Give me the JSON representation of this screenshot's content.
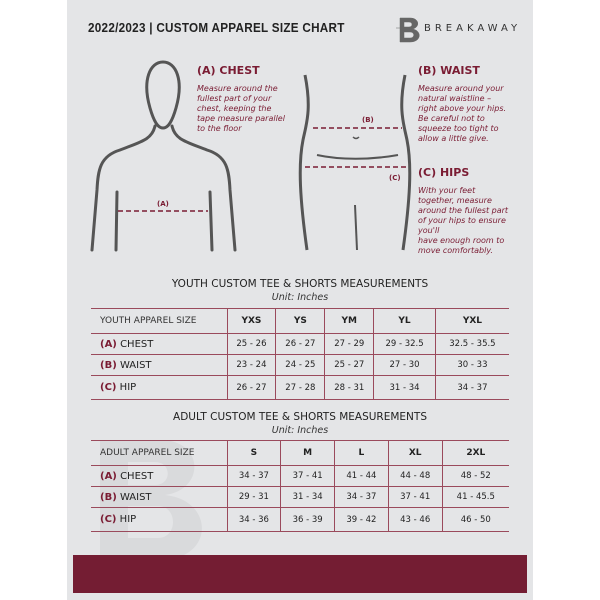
{
  "header": {
    "title": "2022/2023  |  CUSTOM APPAREL SIZE CHART",
    "brand": "BREAKAWAY"
  },
  "guide": {
    "chest": {
      "title": "(A) CHEST",
      "text": "Measure around the\nfullest part of your\nchest, keeping the\ntape measure parallel\nto the floor",
      "marker": "(A)"
    },
    "waist": {
      "title": "(B) WAIST",
      "text": "Measure around your\nnatural waistline –\nright above your hips.\nBe careful not to\nsqueeze too tight to\nallow a little give.",
      "marker": "(B)"
    },
    "hips": {
      "title": "(C) HIPS",
      "text": "With your feet\ntogether, measure\naround the fullest part\nof your hips to ensure\nyou'll\nhave enough room to\nmove comfortably.",
      "marker": "(C)"
    }
  },
  "youth": {
    "title": "YOUTH CUSTOM TEE & SHORTS MEASUREMENTS",
    "unit": "Unit: Inches",
    "label": "YOUTH APPAREL SIZE",
    "sizes": [
      "YXS",
      "YS",
      "YM",
      "YL",
      "YXL"
    ],
    "rows": [
      {
        "letter": "(A)",
        "name": "CHEST",
        "values": [
          "25 - 26",
          "26 - 27",
          "27 - 29",
          "29 - 32.5",
          "32.5 - 35.5"
        ]
      },
      {
        "letter": "(B)",
        "name": "WAIST",
        "values": [
          "23 - 24",
          "24 - 25",
          "25 - 27",
          "27 - 30",
          "30 - 33"
        ]
      },
      {
        "letter": "(C)",
        "name": "HIP",
        "values": [
          "26 - 27",
          "27 - 28",
          "28 - 31",
          "31 - 34",
          "34 - 37"
        ]
      }
    ]
  },
  "adult": {
    "title": "ADULT CUSTOM TEE & SHORTS MEASUREMENTS",
    "unit": "Unit: Inches",
    "label": "ADULT APPAREL SIZE",
    "sizes": [
      "S",
      "M",
      "L",
      "XL",
      "2XL"
    ],
    "rows": [
      {
        "letter": "(A)",
        "name": "CHEST",
        "values": [
          "34 - 37",
          "37 - 41",
          "41 - 44",
          "44 - 48",
          "48 - 52"
        ]
      },
      {
        "letter": "(B)",
        "name": "WAIST",
        "values": [
          "29 - 31",
          "31 - 34",
          "34 - 37",
          "37 - 41",
          "41 - 45.5"
        ]
      },
      {
        "letter": "(C)",
        "name": "HIP",
        "values": [
          "34 - 36",
          "36 - 39",
          "39 - 42",
          "43 - 46",
          "46 - 50"
        ]
      }
    ]
  },
  "colors": {
    "accent": "#741d33",
    "panel": "#e4e5e7"
  }
}
